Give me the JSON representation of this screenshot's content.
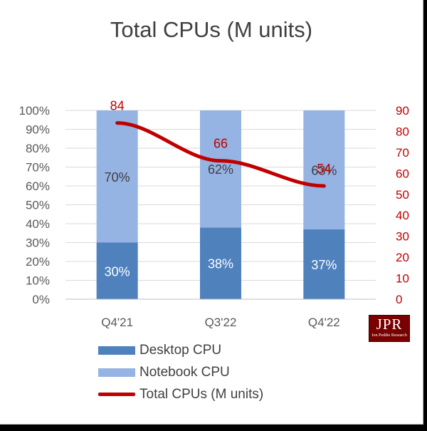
{
  "chart_data": {
    "type": "bar",
    "stacked": true,
    "title": "Total CPUs (M units)",
    "categories": [
      "Q4'21",
      "Q3'22",
      "Q4'22"
    ],
    "y_left_ticks": [
      "0%",
      "10%",
      "20%",
      "30%",
      "40%",
      "50%",
      "60%",
      "70%",
      "80%",
      "90%",
      "100%"
    ],
    "y_left_range": [
      0,
      100
    ],
    "y_right_ticks": [
      "0",
      "10",
      "20",
      "30",
      "40",
      "50",
      "60",
      "70",
      "80",
      "90"
    ],
    "y_right_range": [
      0,
      90
    ],
    "series": [
      {
        "name": "Desktop CPU",
        "kind": "bar",
        "axis": "left",
        "values": [
          30,
          38,
          37
        ],
        "labels": [
          "30%",
          "38%",
          "37%"
        ],
        "color": "#4f81bd"
      },
      {
        "name": "Notebook CPU",
        "kind": "bar",
        "axis": "left",
        "values": [
          70,
          62,
          63
        ],
        "labels": [
          "70%",
          "62%",
          "63%"
        ],
        "color": "#95b3e3"
      },
      {
        "name": "Total CPUs (M units)",
        "kind": "line",
        "axis": "right",
        "values": [
          84,
          66,
          54
        ],
        "labels": [
          "84",
          "66",
          "54"
        ],
        "color": "#c00000"
      }
    ],
    "grid": true,
    "legend_position": "bottom",
    "colors": {
      "axis_text": "#595959",
      "right_axis_text": "#c00000",
      "gridline": "#d9d9d9",
      "data_label": "#ffffff"
    }
  },
  "logo": {
    "main": "JPR",
    "sub": "Jon Peddie Research"
  }
}
